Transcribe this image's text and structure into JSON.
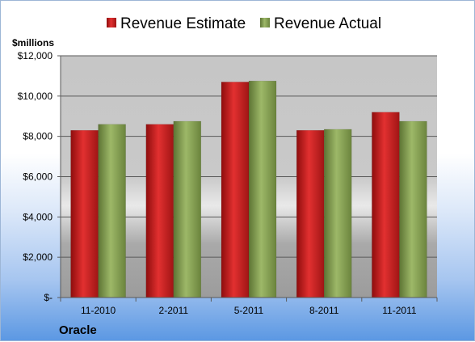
{
  "chart_data": {
    "type": "bar",
    "title": "",
    "caption": "Oracle",
    "unit_label": "$millions",
    "categories": [
      "11-2010",
      "2-2011",
      "5-2011",
      "8-2011",
      "11-2011"
    ],
    "series": [
      {
        "name": "Revenue Estimate",
        "values": [
          8300,
          8600,
          10700,
          8300,
          9200
        ],
        "color": "#d42020"
      },
      {
        "name": "Revenue Actual",
        "values": [
          8600,
          8750,
          10750,
          8350,
          8750
        ],
        "color": "#8ea85a"
      }
    ],
    "ylim": [
      0,
      12000
    ],
    "yticks": [
      0,
      2000,
      4000,
      6000,
      8000,
      10000,
      12000
    ],
    "ytick_labels": [
      "$-",
      "$2,000",
      "$4,000",
      "$6,000",
      "$8,000",
      "$10,000",
      "$12,000"
    ],
    "grid": true,
    "legend_position": "top"
  }
}
